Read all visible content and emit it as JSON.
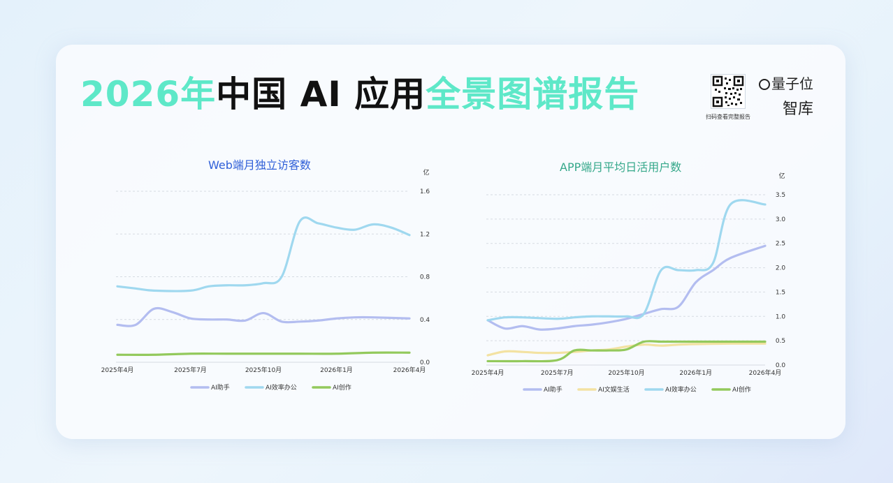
{
  "header": {
    "title_parts": [
      "2026年",
      "中国 AI 应用",
      "全景图谱报告"
    ],
    "qr_caption": "扫码查看完整报告",
    "brand_name": "量子位",
    "brand_sub": "智库"
  },
  "colors": {
    "title_accent": "#5ee8c8",
    "ai_assistant": "#b3bdf0",
    "ai_efficiency": "#9fd8ef",
    "ai_creation": "#93c95c",
    "ai_entertainment": "#f3e2a2",
    "left_title": "#2f5fd8",
    "right_title": "#35a88a"
  },
  "chart_data": [
    {
      "type": "line",
      "title": "Web端月独立访客数",
      "unit": "亿",
      "x_ticks": [
        "2025年4月",
        "2025年7月",
        "2025年10月",
        "2026年1月",
        "2026年4月"
      ],
      "ylim": [
        0,
        1.6
      ],
      "y_ticks": [
        "0.0",
        "0.4",
        "0.8",
        "1.2",
        "1.6"
      ],
      "grid": true,
      "legend": "bottom",
      "series": [
        {
          "name": "AI助手",
          "color_key": "ai_assistant",
          "points": [
            [
              0,
              0.35
            ],
            [
              0.5,
              0.35
            ],
            [
              1,
              0.5
            ],
            [
              1.5,
              0.47
            ],
            [
              2,
              0.41
            ],
            [
              2.5,
              0.4
            ],
            [
              3,
              0.4
            ],
            [
              3.5,
              0.39
            ],
            [
              4,
              0.46
            ],
            [
              4.5,
              0.38
            ],
            [
              5,
              0.38
            ],
            [
              5.5,
              0.39
            ],
            [
              6,
              0.41
            ],
            [
              6.5,
              0.42
            ],
            [
              7,
              0.42
            ],
            [
              8,
              0.41
            ]
          ]
        },
        {
          "name": "AI效率办公",
          "color_key": "ai_efficiency",
          "points": [
            [
              0,
              0.71
            ],
            [
              0.5,
              0.69
            ],
            [
              1,
              0.67
            ],
            [
              2,
              0.67
            ],
            [
              2.5,
              0.71
            ],
            [
              3,
              0.72
            ],
            [
              3.5,
              0.72
            ],
            [
              4,
              0.74
            ],
            [
              4.5,
              0.8
            ],
            [
              5,
              1.32
            ],
            [
              5.5,
              1.3
            ],
            [
              6,
              1.26
            ],
            [
              6.5,
              1.24
            ],
            [
              7,
              1.29
            ],
            [
              7.5,
              1.26
            ],
            [
              8,
              1.19
            ]
          ]
        },
        {
          "name": "AI创作",
          "color_key": "ai_creation",
          "points": [
            [
              0,
              0.07
            ],
            [
              1,
              0.07
            ],
            [
              2,
              0.08
            ],
            [
              3,
              0.08
            ],
            [
              4,
              0.08
            ],
            [
              5,
              0.08
            ],
            [
              6,
              0.08
            ],
            [
              7,
              0.09
            ],
            [
              8,
              0.09
            ]
          ]
        }
      ]
    },
    {
      "type": "line",
      "title": "APP端月平均日活用户数",
      "unit": "亿",
      "x_ticks": [
        "2025年4月",
        "2025年7月",
        "2025年10月",
        "2026年1月",
        "2026年4月"
      ],
      "ylim": [
        0,
        3.5
      ],
      "y_ticks": [
        "0.0",
        "0.5",
        "1.0",
        "1.5",
        "2.0",
        "2.5",
        "3.0",
        "3.5"
      ],
      "grid": true,
      "legend": "bottom",
      "series": [
        {
          "name": "AI助手",
          "color_key": "ai_assistant",
          "points": [
            [
              0,
              0.92
            ],
            [
              0.5,
              0.75
            ],
            [
              1,
              0.8
            ],
            [
              1.5,
              0.73
            ],
            [
              2,
              0.75
            ],
            [
              2.5,
              0.8
            ],
            [
              3,
              0.83
            ],
            [
              3.5,
              0.88
            ],
            [
              4,
              0.95
            ],
            [
              4.5,
              1.05
            ],
            [
              5,
              1.15
            ],
            [
              5.5,
              1.2
            ],
            [
              6,
              1.7
            ],
            [
              6.5,
              1.95
            ],
            [
              7,
              2.2
            ],
            [
              8,
              2.45
            ]
          ]
        },
        {
          "name": "AI文娱生活",
          "color_key": "ai_entertainment",
          "points": [
            [
              0,
              0.2
            ],
            [
              0.5,
              0.28
            ],
            [
              1,
              0.27
            ],
            [
              1.5,
              0.25
            ],
            [
              2,
              0.25
            ],
            [
              2.5,
              0.27
            ],
            [
              3,
              0.3
            ],
            [
              3.5,
              0.32
            ],
            [
              4,
              0.38
            ],
            [
              4.5,
              0.42
            ],
            [
              5,
              0.4
            ],
            [
              5.5,
              0.42
            ],
            [
              6,
              0.43
            ],
            [
              7,
              0.44
            ],
            [
              8,
              0.44
            ]
          ]
        },
        {
          "name": "AI效率办公",
          "color_key": "ai_efficiency",
          "points": [
            [
              0,
              0.92
            ],
            [
              0.5,
              0.98
            ],
            [
              1,
              0.98
            ],
            [
              2,
              0.95
            ],
            [
              2.5,
              0.98
            ],
            [
              3,
              1.0
            ],
            [
              3.5,
              1.0
            ],
            [
              4,
              1.0
            ],
            [
              4.5,
              1.05
            ],
            [
              5,
              1.95
            ],
            [
              5.5,
              1.95
            ],
            [
              6,
              1.95
            ],
            [
              6.5,
              2.1
            ],
            [
              7,
              3.3
            ],
            [
              8,
              3.3
            ]
          ]
        },
        {
          "name": "AI创作",
          "color_key": "ai_creation",
          "points": [
            [
              0,
              0.08
            ],
            [
              1,
              0.08
            ],
            [
              2,
              0.1
            ],
            [
              2.5,
              0.3
            ],
            [
              3,
              0.3
            ],
            [
              3.5,
              0.3
            ],
            [
              4,
              0.32
            ],
            [
              4.5,
              0.48
            ],
            [
              5,
              0.48
            ],
            [
              5.5,
              0.48
            ],
            [
              6,
              0.48
            ],
            [
              7,
              0.48
            ],
            [
              8,
              0.48
            ]
          ]
        }
      ]
    }
  ]
}
